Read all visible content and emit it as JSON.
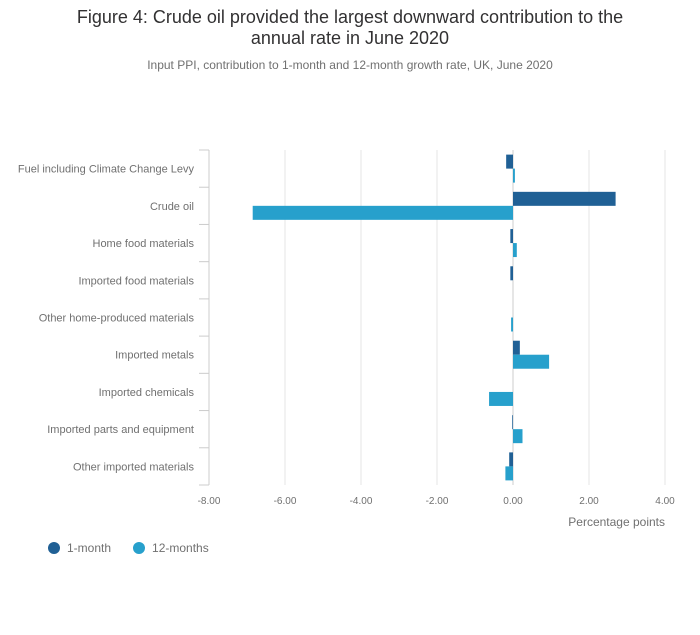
{
  "header": {
    "title_line1": "Figure 4: Crude oil provided the largest downward contribution to the",
    "title_line2": "annual rate in June 2020",
    "subtitle": "Input PPI, contribution to 1-month and 12-month growth rate, UK, June 2020"
  },
  "chart_data": {
    "type": "bar",
    "orientation": "horizontal",
    "categories": [
      "Fuel including Climate Change Levy",
      "Crude oil",
      "Home food materials",
      "Imported food materials",
      "Other home-produced materials",
      "Imported metals",
      "Imported chemicals",
      "Imported parts and equipment",
      "Other imported materials"
    ],
    "series": [
      {
        "name": "1-month",
        "color": "#206095",
        "values": [
          -0.18,
          2.7,
          -0.07,
          -0.07,
          0.0,
          0.18,
          0.0,
          -0.02,
          -0.1
        ]
      },
      {
        "name": "12-months",
        "color": "#27a0cc",
        "values": [
          0.05,
          -6.85,
          0.1,
          0.0,
          -0.05,
          0.95,
          -0.63,
          0.25,
          -0.2
        ]
      }
    ],
    "xlabel": "Percentage points",
    "xlim": [
      -8,
      4
    ],
    "xticks": [
      -8,
      -6,
      -4,
      -2,
      0,
      2,
      4
    ],
    "xtick_labels": [
      "-8.00",
      "-6.00",
      "-4.00",
      "-2.00",
      "0.00",
      "2.00",
      "4.00"
    ],
    "grid": true,
    "legend_position": "bottom-left"
  }
}
